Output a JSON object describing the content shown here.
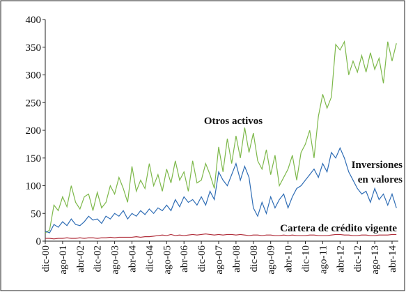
{
  "chart_data": {
    "type": "line",
    "categories": [
      "dic-00",
      null,
      null,
      null,
      "ago-01",
      null,
      null,
      null,
      "abr-02",
      null,
      null,
      null,
      "dic-02",
      null,
      null,
      null,
      "ago-03",
      null,
      null,
      null,
      "abr-04",
      null,
      null,
      null,
      "dic-04",
      null,
      null,
      null,
      "ago-05",
      null,
      null,
      null,
      "abr-06",
      null,
      null,
      null,
      "dic-06",
      null,
      null,
      null,
      "ago-07",
      null,
      null,
      null,
      "abr-08",
      null,
      null,
      null,
      "dic-08",
      null,
      null,
      null,
      "ago-09",
      null,
      null,
      null,
      "abr-10",
      null,
      null,
      null,
      "dic-10",
      null,
      null,
      null,
      "ago-11",
      null,
      null,
      null,
      "abr-12",
      null,
      null,
      null,
      "dic-12",
      null,
      null,
      null,
      "ago-13",
      null,
      null,
      null,
      "abr-14",
      null
    ],
    "series": [
      {
        "name": "Otros activos",
        "color": "#7db84a",
        "values": [
          15,
          20,
          65,
          55,
          80,
          62,
          100,
          70,
          58,
          80,
          85,
          55,
          88,
          60,
          70,
          100,
          85,
          115,
          95,
          70,
          135,
          90,
          110,
          95,
          140,
          100,
          120,
          90,
          130,
          105,
          145,
          110,
          125,
          90,
          145,
          105,
          110,
          140,
          120,
          95,
          170,
          125,
          185,
          140,
          190,
          150,
          205,
          160,
          195,
          145,
          130,
          165,
          120,
          155,
          100,
          115,
          130,
          155,
          110,
          160,
          175,
          200,
          150,
          225,
          265,
          240,
          260,
          355,
          345,
          360,
          300,
          325,
          305,
          335,
          305,
          340,
          310,
          330,
          285,
          360,
          325,
          357
        ]
      },
      {
        "name": "Inversiones en valores",
        "color": "#2f6db5",
        "values": [
          18,
          15,
          30,
          25,
          35,
          28,
          40,
          30,
          28,
          35,
          45,
          38,
          40,
          32,
          45,
          40,
          50,
          45,
          55,
          40,
          50,
          45,
          55,
          48,
          58,
          50,
          60,
          55,
          65,
          55,
          75,
          62,
          80,
          70,
          75,
          65,
          80,
          65,
          90,
          75,
          125,
          110,
          100,
          120,
          140,
          110,
          135,
          115,
          60,
          45,
          70,
          50,
          80,
          60,
          75,
          85,
          60,
          80,
          95,
          100,
          110,
          120,
          130,
          115,
          140,
          125,
          160,
          150,
          168,
          150,
          125,
          110,
          95,
          85,
          90,
          70,
          95,
          75,
          85,
          65,
          85,
          60
        ]
      },
      {
        "name": "Cartera de crédito vigente",
        "color": "#b02d3a",
        "values": [
          5,
          5,
          4,
          5,
          5,
          6,
          5,
          5,
          6,
          5,
          6,
          6,
          5,
          6,
          6,
          7,
          6,
          7,
          7,
          7,
          7,
          8,
          7,
          8,
          8,
          9,
          10,
          11,
          10,
          12,
          10,
          11,
          10,
          11,
          12,
          11,
          12,
          13,
          12,
          11,
          12,
          11,
          12,
          12,
          11,
          12,
          11,
          10,
          11,
          11,
          10,
          11,
          11,
          10,
          10,
          11,
          10,
          11,
          10,
          10,
          10,
          11,
          11,
          10,
          10,
          10,
          11,
          12,
          12,
          11,
          11,
          10,
          10,
          11,
          11,
          10,
          10,
          11,
          11,
          11,
          12,
          12
        ]
      }
    ],
    "annotations": [
      "Otros activos",
      "Inversiones",
      "en valores",
      "Cartera de crédito vigente"
    ],
    "ylim": [
      0,
      400
    ],
    "yticks": [
      0,
      50,
      100,
      150,
      200,
      250,
      300,
      350,
      400
    ],
    "grid": false
  }
}
